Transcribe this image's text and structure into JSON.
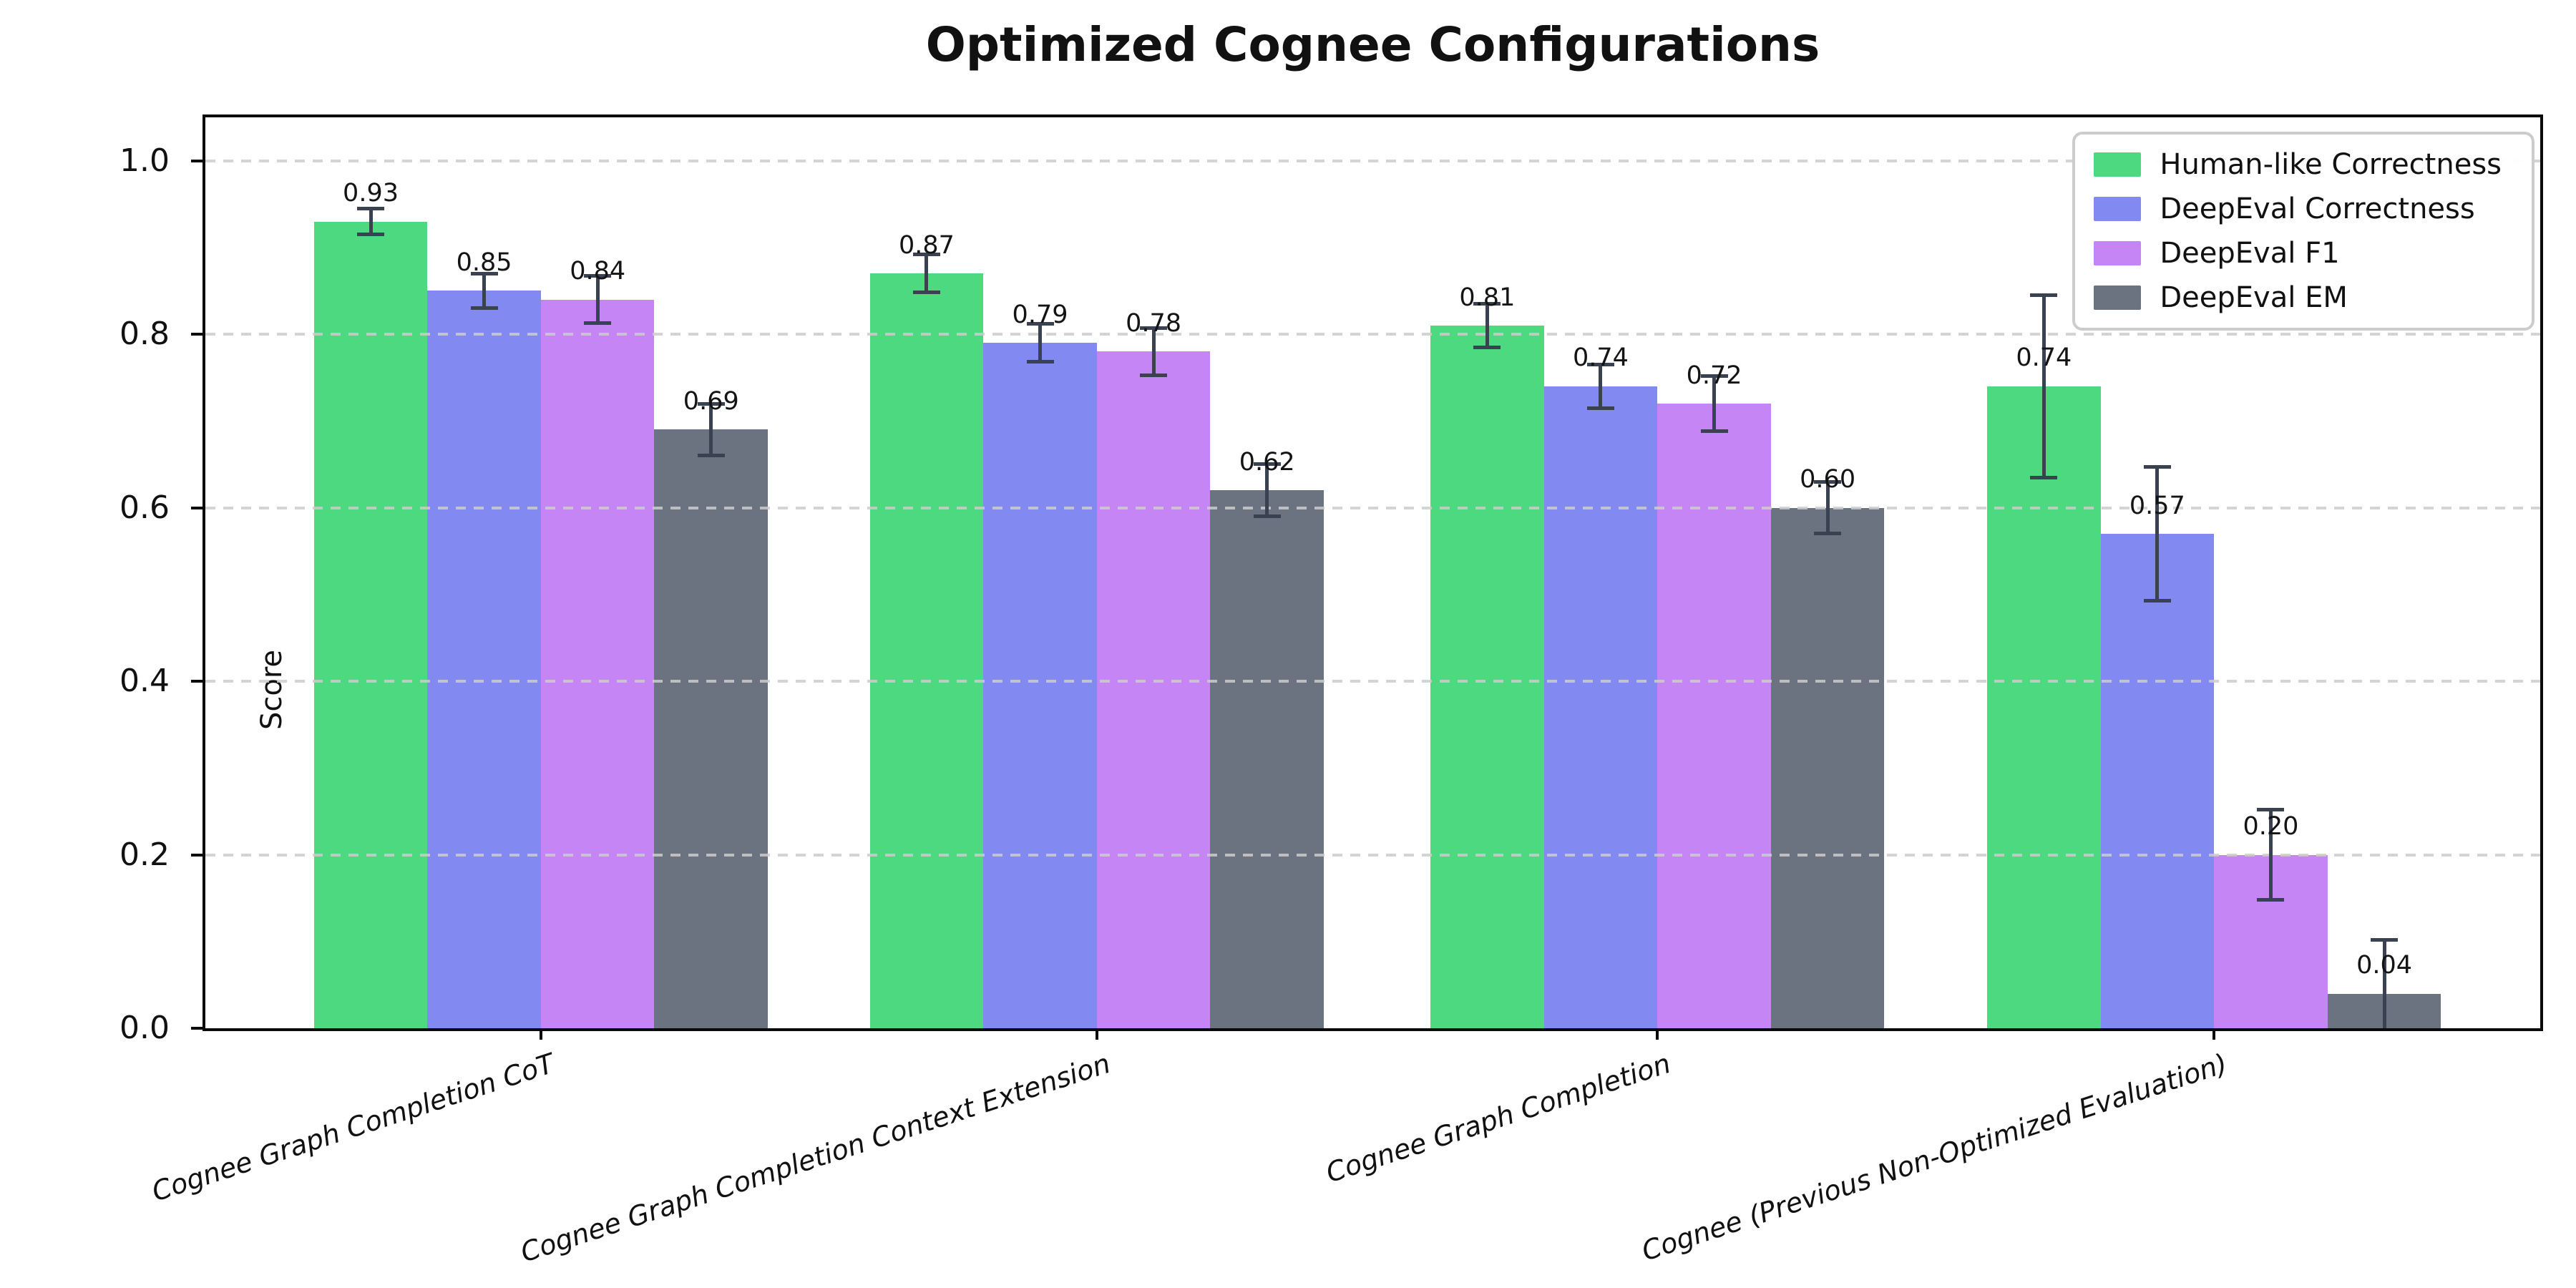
{
  "chart_data": {
    "type": "bar",
    "title": "Optimized Cognee Configurations",
    "xlabel": "",
    "ylabel": "Score",
    "ylim": [
      0,
      1.05
    ],
    "yticks": [
      0.0,
      0.2,
      0.4,
      0.6,
      0.8,
      1.0
    ],
    "ytick_labels": [
      "0.0",
      "0.2",
      "0.4",
      "0.6",
      "0.8",
      "1.0"
    ],
    "grid": {
      "axis": "y",
      "style": "dashed",
      "color": "#cccccc",
      "drawn_over_bars": true
    },
    "legend": {
      "position": "upper right"
    },
    "categories": [
      "Cognee Graph Completion CoT",
      "Cognee Graph Completion Context Extension",
      "Cognee Graph Completion",
      "Cognee (Previous Non-Optimized Evaluation)"
    ],
    "series": [
      {
        "name": "Human-like Correctness",
        "color": "#4dd97f",
        "values": [
          0.93,
          0.87,
          0.81,
          0.74
        ],
        "errors": [
          0.015,
          0.022,
          0.025,
          0.105
        ]
      },
      {
        "name": "DeepEval Correctness",
        "color": "#8289f1",
        "values": [
          0.85,
          0.79,
          0.74,
          0.57
        ],
        "errors": [
          0.02,
          0.022,
          0.025,
          0.077
        ]
      },
      {
        "name": "DeepEval F1",
        "color": "#c585f4",
        "values": [
          0.84,
          0.78,
          0.72,
          0.2
        ],
        "errors": [
          0.027,
          0.027,
          0.032,
          0.052
        ]
      },
      {
        "name": "DeepEval EM",
        "color": "#6b7280",
        "values": [
          0.69,
          0.62,
          0.6,
          0.04
        ],
        "errors": [
          0.03,
          0.03,
          0.03,
          0.062
        ]
      }
    ],
    "value_labels": [
      [
        "0.93",
        "0.87",
        "0.81",
        "0.74"
      ],
      [
        "0.85",
        "0.79",
        "0.74",
        "0.57"
      ],
      [
        "0.84",
        "0.78",
        "0.72",
        "0.20"
      ],
      [
        "0.69",
        "0.62",
        "0.60",
        "0.04"
      ]
    ],
    "errorbar_color": "#3a4150"
  }
}
